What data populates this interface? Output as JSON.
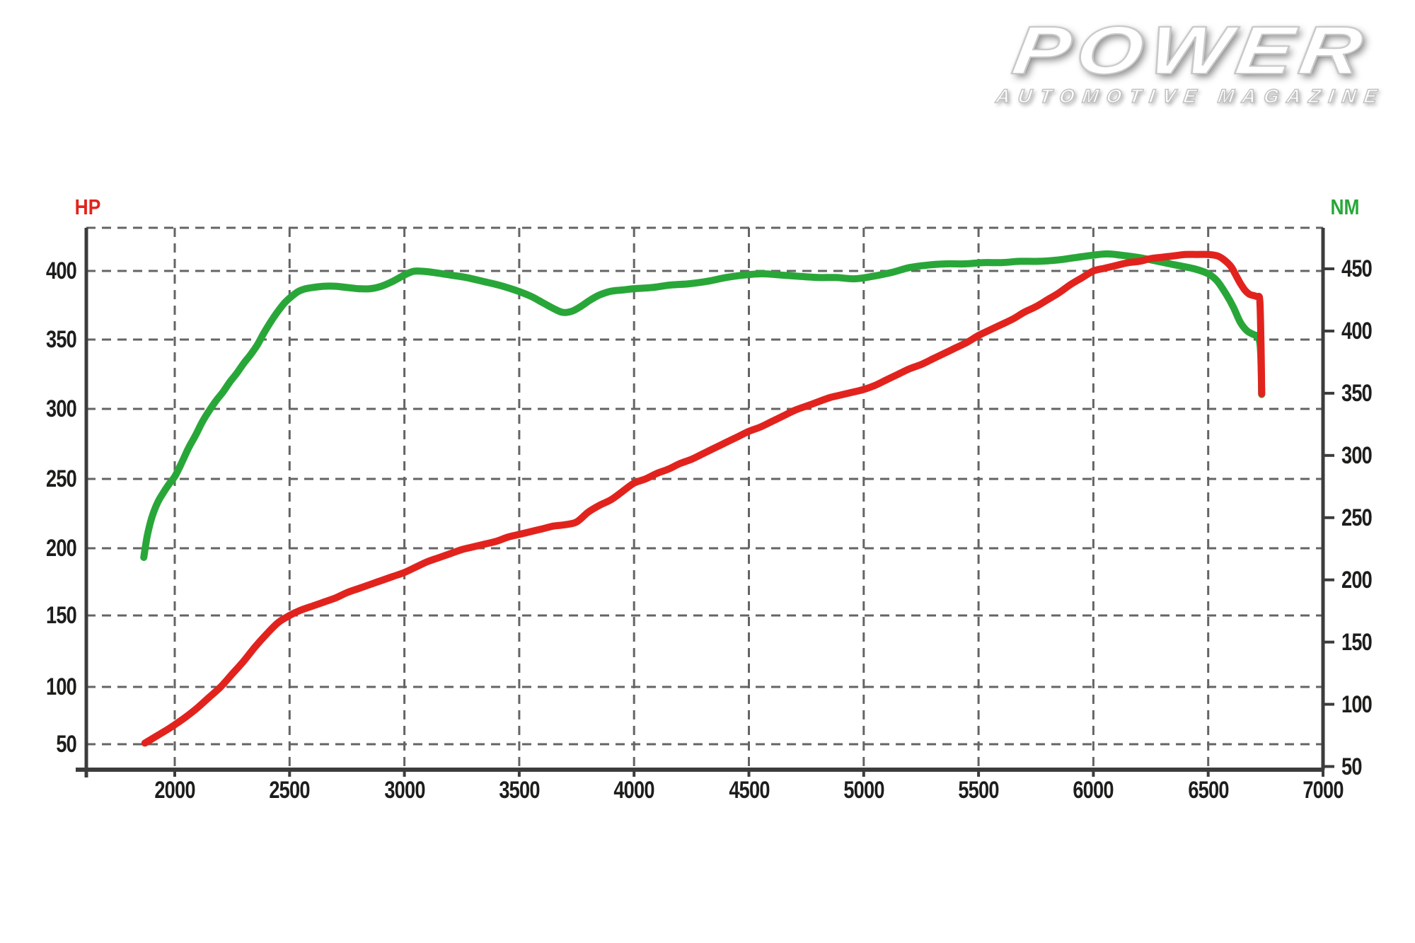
{
  "logo": {
    "title": "POWER",
    "subtitle": "AUTOMOTIVE MAGAZINE"
  },
  "colors": {
    "hp_red": "#e2231d",
    "nm_green": "#28a738",
    "grid": "#646464",
    "axis": "#3c3c3c",
    "label": "#1d1d1b",
    "background": "#ffffff"
  },
  "chart_data": {
    "type": "line",
    "title": "",
    "grid": "dashed",
    "legend_position": "none",
    "x_axis": {
      "unit": "rpm",
      "tick_values": [
        2000,
        2500,
        3000,
        3500,
        4000,
        4500,
        5000,
        5500,
        6000,
        6500,
        7000
      ],
      "range_shown": [
        1615,
        7000
      ]
    },
    "left_axis": {
      "name": "HP",
      "color": "#e2231d",
      "tick_values": [
        400,
        350,
        300,
        250,
        200,
        150,
        100,
        50
      ]
    },
    "right_axis": {
      "name": "NM",
      "color": "#28a738",
      "tick_values": [
        450,
        400,
        350,
        300,
        250,
        200,
        150,
        100,
        50
      ]
    },
    "series": [
      {
        "name": "NM",
        "axis": "right",
        "color": "#28a738",
        "points": [
          [
            1865,
            218
          ],
          [
            1880,
            235
          ],
          [
            1900,
            250
          ],
          [
            1925,
            262
          ],
          [
            1950,
            270
          ],
          [
            1975,
            277
          ],
          [
            2000,
            283
          ],
          [
            2030,
            294
          ],
          [
            2060,
            306
          ],
          [
            2090,
            316
          ],
          [
            2120,
            327
          ],
          [
            2150,
            336
          ],
          [
            2180,
            344
          ],
          [
            2210,
            351
          ],
          [
            2240,
            359
          ],
          [
            2270,
            366
          ],
          [
            2300,
            374
          ],
          [
            2330,
            381
          ],
          [
            2360,
            389
          ],
          [
            2390,
            399
          ],
          [
            2420,
            408
          ],
          [
            2450,
            416
          ],
          [
            2480,
            423
          ],
          [
            2510,
            428
          ],
          [
            2540,
            432
          ],
          [
            2570,
            434
          ],
          [
            2600,
            435
          ],
          [
            2650,
            436
          ],
          [
            2700,
            436
          ],
          [
            2750,
            435
          ],
          [
            2800,
            434
          ],
          [
            2850,
            434
          ],
          [
            2900,
            436
          ],
          [
            2950,
            440
          ],
          [
            3000,
            445
          ],
          [
            3040,
            448
          ],
          [
            3080,
            448
          ],
          [
            3130,
            447
          ],
          [
            3200,
            445
          ],
          [
            3270,
            443
          ],
          [
            3340,
            440
          ],
          [
            3410,
            437
          ],
          [
            3480,
            433
          ],
          [
            3550,
            428
          ],
          [
            3600,
            423
          ],
          [
            3650,
            418
          ],
          [
            3690,
            415
          ],
          [
            3730,
            416
          ],
          [
            3770,
            420
          ],
          [
            3810,
            425
          ],
          [
            3850,
            429
          ],
          [
            3900,
            432
          ],
          [
            3950,
            433
          ],
          [
            4000,
            434
          ],
          [
            4080,
            435
          ],
          [
            4160,
            437
          ],
          [
            4240,
            438
          ],
          [
            4320,
            440
          ],
          [
            4400,
            443
          ],
          [
            4480,
            445
          ],
          [
            4560,
            446
          ],
          [
            4640,
            445
          ],
          [
            4720,
            444
          ],
          [
            4800,
            443
          ],
          [
            4880,
            443
          ],
          [
            4960,
            442
          ],
          [
            5040,
            444
          ],
          [
            5120,
            447
          ],
          [
            5200,
            451
          ],
          [
            5280,
            453
          ],
          [
            5360,
            454
          ],
          [
            5440,
            454
          ],
          [
            5520,
            455
          ],
          [
            5600,
            455
          ],
          [
            5680,
            456
          ],
          [
            5760,
            456
          ],
          [
            5840,
            457
          ],
          [
            5920,
            459
          ],
          [
            6000,
            461
          ],
          [
            6060,
            462
          ],
          [
            6120,
            461
          ],
          [
            6200,
            459
          ],
          [
            6280,
            456
          ],
          [
            6360,
            453
          ],
          [
            6440,
            450
          ],
          [
            6500,
            446
          ],
          [
            6540,
            440
          ],
          [
            6580,
            429
          ],
          [
            6610,
            419
          ],
          [
            6640,
            407
          ],
          [
            6670,
            400
          ],
          [
            6700,
            397
          ],
          [
            6718,
            395
          ],
          [
            6728,
            384
          ],
          [
            6733,
            349
          ]
        ]
      },
      {
        "name": "HP",
        "axis": "left",
        "color": "#e2231d",
        "points": [
          [
            1870,
            51
          ],
          [
            1920,
            57
          ],
          [
            1970,
            63
          ],
          [
            2000,
            67
          ],
          [
            2050,
            74
          ],
          [
            2100,
            82
          ],
          [
            2150,
            91
          ],
          [
            2200,
            100
          ],
          [
            2250,
            109
          ],
          [
            2300,
            118
          ],
          [
            2350,
            128
          ],
          [
            2400,
            137
          ],
          [
            2450,
            145
          ],
          [
            2500,
            150
          ],
          [
            2550,
            154
          ],
          [
            2600,
            157
          ],
          [
            2650,
            160
          ],
          [
            2700,
            163
          ],
          [
            2750,
            167
          ],
          [
            2800,
            170
          ],
          [
            2850,
            173
          ],
          [
            2900,
            176
          ],
          [
            2950,
            179
          ],
          [
            3000,
            182
          ],
          [
            3050,
            186
          ],
          [
            3100,
            190
          ],
          [
            3150,
            193
          ],
          [
            3200,
            196
          ],
          [
            3250,
            199
          ],
          [
            3300,
            201
          ],
          [
            3350,
            203
          ],
          [
            3400,
            205
          ],
          [
            3450,
            208
          ],
          [
            3500,
            210
          ],
          [
            3550,
            212
          ],
          [
            3600,
            214
          ],
          [
            3650,
            216
          ],
          [
            3700,
            217
          ],
          [
            3750,
            219
          ],
          [
            3800,
            226
          ],
          [
            3850,
            231
          ],
          [
            3900,
            235
          ],
          [
            3950,
            241
          ],
          [
            4000,
            247
          ],
          [
            4050,
            250
          ],
          [
            4100,
            254
          ],
          [
            4150,
            257
          ],
          [
            4200,
            261
          ],
          [
            4250,
            264
          ],
          [
            4300,
            268
          ],
          [
            4350,
            272
          ],
          [
            4400,
            276
          ],
          [
            4450,
            280
          ],
          [
            4500,
            284
          ],
          [
            4550,
            287
          ],
          [
            4600,
            291
          ],
          [
            4650,
            295
          ],
          [
            4700,
            299
          ],
          [
            4750,
            302
          ],
          [
            4800,
            305
          ],
          [
            4850,
            308
          ],
          [
            4900,
            310
          ],
          [
            4950,
            312
          ],
          [
            5000,
            314
          ],
          [
            5050,
            317
          ],
          [
            5100,
            321
          ],
          [
            5150,
            325
          ],
          [
            5200,
            329
          ],
          [
            5250,
            332
          ],
          [
            5300,
            336
          ],
          [
            5350,
            340
          ],
          [
            5400,
            344
          ],
          [
            5450,
            348
          ],
          [
            5500,
            353
          ],
          [
            5550,
            357
          ],
          [
            5600,
            361
          ],
          [
            5650,
            365
          ],
          [
            5700,
            370
          ],
          [
            5750,
            374
          ],
          [
            5800,
            379
          ],
          [
            5850,
            384
          ],
          [
            5900,
            390
          ],
          [
            5950,
            395
          ],
          [
            6000,
            400
          ],
          [
            6050,
            402
          ],
          [
            6100,
            404
          ],
          [
            6150,
            406
          ],
          [
            6200,
            407
          ],
          [
            6250,
            409
          ],
          [
            6300,
            410
          ],
          [
            6350,
            411
          ],
          [
            6400,
            412
          ],
          [
            6450,
            412
          ],
          [
            6500,
            412
          ],
          [
            6540,
            411
          ],
          [
            6570,
            408
          ],
          [
            6600,
            403
          ],
          [
            6620,
            397
          ],
          [
            6640,
            391
          ],
          [
            6660,
            386
          ],
          [
            6680,
            383
          ],
          [
            6700,
            382
          ],
          [
            6715,
            381
          ],
          [
            6725,
            378
          ],
          [
            6730,
            345
          ],
          [
            6733,
            311
          ]
        ]
      }
    ]
  }
}
